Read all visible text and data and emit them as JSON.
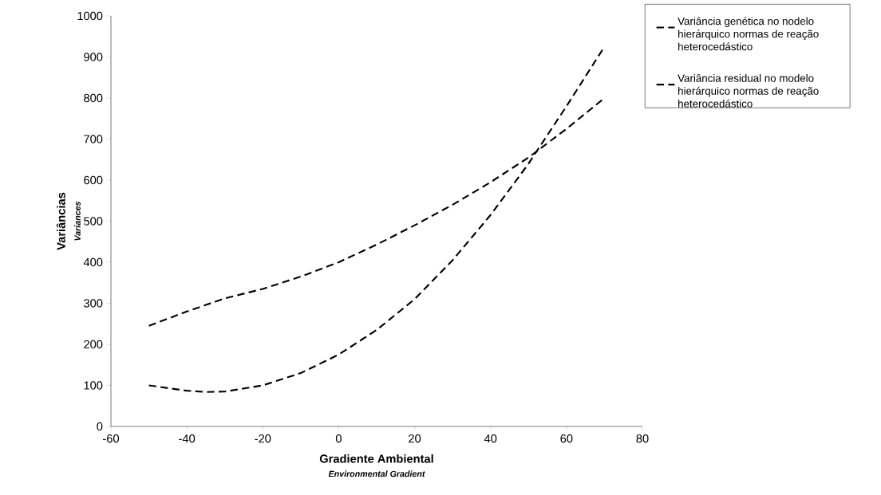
{
  "chart_data": {
    "type": "line",
    "xlabel": "Gradiente Ambiental",
    "ylabel": "Variâncias",
    "annotations": [
      "Environmental Gradient",
      "Variances"
    ],
    "x": [
      -50,
      -40,
      -35,
      -30,
      -20,
      -10,
      0,
      10,
      20,
      30,
      40,
      50,
      60,
      70
    ],
    "series": [
      {
        "name": "Variância genética no nodelo hierárquico normas de reação heterocedástico",
        "color": "#000000",
        "line_style": "dashed",
        "values": [
          100,
          87,
          84,
          85,
          100,
          130,
          175,
          235,
          310,
          405,
          515,
          640,
          780,
          925
        ]
      },
      {
        "name": "Variância residual no modelo hierárquico normas de reação heterocedástico",
        "color": "#000000",
        "line_style": "dashed",
        "values": [
          245,
          280,
          296,
          312,
          335,
          365,
          400,
          443,
          490,
          540,
          595,
          655,
          725,
          800
        ]
      }
    ],
    "xlim": [
      -60,
      80
    ],
    "xticks": [
      -60,
      -40,
      -20,
      0,
      20,
      40,
      60,
      80
    ],
    "ylim": [
      0,
      1000
    ],
    "yticks": [
      0,
      100,
      200,
      300,
      400,
      500,
      600,
      700,
      800,
      900,
      1000
    ],
    "grid": false,
    "legend": "top right",
    "marker": "none"
  }
}
